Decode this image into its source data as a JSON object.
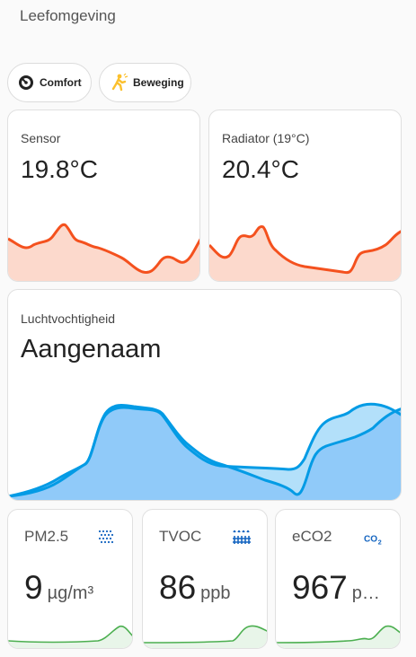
{
  "page": {
    "title": "Leefomgeving"
  },
  "chips": [
    {
      "label": "Comfort",
      "icon": "gauge-icon"
    },
    {
      "label": "Beweging",
      "icon": "walking-person-icon"
    }
  ],
  "cards": {
    "sensor": {
      "name": "Sensor",
      "value": "19.8°C"
    },
    "radiator": {
      "name": "Radiator (19°C)",
      "value": "20.4°C"
    },
    "humidity": {
      "name": "Luchtvochtigheid",
      "value": "Aangenaam"
    },
    "pm25": {
      "name": "PM2.5",
      "value": "9",
      "unit": "µg/m³",
      "icon": "dots-grid-icon"
    },
    "tvoc": {
      "name": "TVOC",
      "value": "86",
      "unit": "ppb",
      "icon": "radiator-icon"
    },
    "eco2": {
      "name": "eCO2",
      "value": "967",
      "unit": "p…",
      "icon": "co2-icon"
    }
  },
  "colors": {
    "temp_line": "#f4511e",
    "temp_fill": "#fcd9cc",
    "humidity_dark": "#039be5",
    "humidity_fill_dark": "#90caf9",
    "humidity_fill_light": "#b3e0fa",
    "air_line": "#4caf50",
    "air_fill": "#e8f5e9",
    "icon_blue": "#1565c0",
    "chip_yellow": "#fbc02d"
  }
}
